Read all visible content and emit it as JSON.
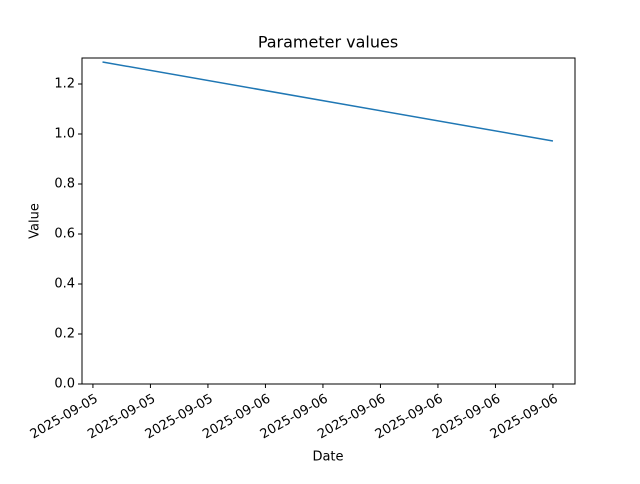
{
  "chart_data": {
    "type": "line",
    "title": "Parameter values",
    "x_label": "Date",
    "y_label": "Value",
    "x": [
      0.5,
      24
    ],
    "series": [
      {
        "name": "Value",
        "color": "#1f77b4",
        "values": [
          1.288,
          0.972
        ]
      }
    ],
    "xlim": [
      -0.57,
      25.15
    ],
    "xticks": [
      {
        "value": 0,
        "label": "2025-09-05"
      },
      {
        "value": 3,
        "label": "2025-09-05"
      },
      {
        "value": 6,
        "label": "2025-09-05"
      },
      {
        "value": 9,
        "label": "2025-09-06"
      },
      {
        "value": 12,
        "label": "2025-09-06"
      },
      {
        "value": 15,
        "label": "2025-09-06"
      },
      {
        "value": 18,
        "label": "2025-09-06"
      },
      {
        "value": 21,
        "label": "2025-09-06"
      },
      {
        "value": 24,
        "label": "2025-09-06"
      }
    ],
    "ylim": [
      0,
      1.304
    ],
    "yticks": [
      {
        "value": 0,
        "label": "0.0"
      },
      0.2,
      0.4,
      0.6,
      0.8,
      {
        "value": 1,
        "label": "1.0"
      },
      1.2
    ],
    "grid": false
  }
}
